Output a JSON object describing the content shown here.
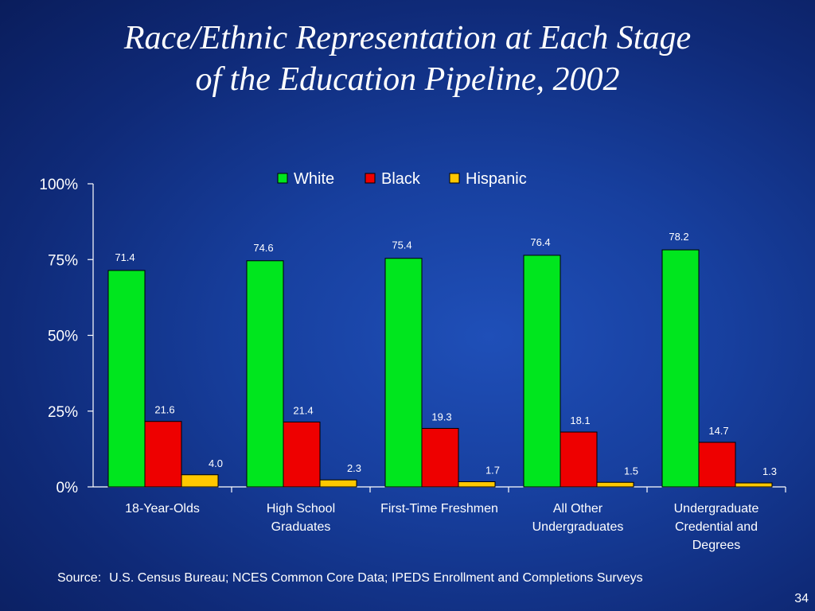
{
  "slide": {
    "title_line1": "Race/Ethnic Representation at Each Stage",
    "title_line2": "of the Education Pipeline, 2002",
    "source_label": "Source:",
    "source_text": "U.S. Census Bureau; NCES Common Core Data; IPEDS Enrollment and Completions Surveys",
    "page_number": "34"
  },
  "chart_data": {
    "type": "bar",
    "title": "",
    "xlabel": "",
    "ylabel": "",
    "ylim": [
      0,
      100
    ],
    "yticks": [
      "0%",
      "25%",
      "50%",
      "75%",
      "100%"
    ],
    "ytick_values": [
      0,
      25,
      50,
      75,
      100
    ],
    "grid": false,
    "legend_position": "top-center",
    "categories": [
      [
        "18-Year-Olds"
      ],
      [
        "High School",
        "Graduates"
      ],
      [
        "First-Time Freshmen"
      ],
      [
        "All Other",
        "Undergraduates"
      ],
      [
        "Undergraduate",
        "Credential and",
        "Degrees"
      ]
    ],
    "series": [
      {
        "name": "White",
        "color": "#00e61e",
        "values": [
          71.4,
          74.6,
          75.4,
          76.4,
          78.2
        ],
        "labels": [
          "71.4",
          "74.6",
          "75.4",
          "76.4",
          "78.2"
        ]
      },
      {
        "name": "Black",
        "color": "#ee0000",
        "values": [
          21.6,
          21.4,
          19.3,
          18.1,
          14.7
        ],
        "labels": [
          "21.6",
          "21.4",
          "19.3",
          "18.1",
          "14.7"
        ]
      },
      {
        "name": "Hispanic",
        "color": "#ffc800",
        "values": [
          4.0,
          2.3,
          1.7,
          1.5,
          1.3
        ],
        "labels": [
          "4.0",
          "2.3",
          "1.7",
          "1.5",
          "1.3"
        ]
      }
    ]
  }
}
